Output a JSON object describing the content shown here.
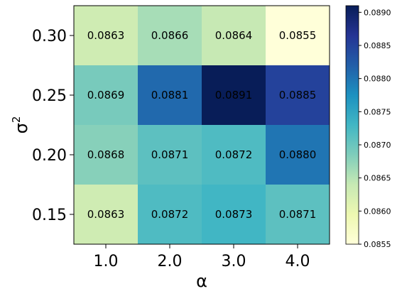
{
  "chart_data": {
    "type": "heatmap",
    "title": "",
    "xlabel": "α",
    "ylabel_base": "σ",
    "ylabel_sup": "2",
    "x_categories": [
      "1.0",
      "2.0",
      "3.0",
      "4.0"
    ],
    "y_categories": [
      "0.30",
      "0.25",
      "0.20",
      "0.15"
    ],
    "values": [
      [
        0.0863,
        0.0866,
        0.0864,
        0.0855
      ],
      [
        0.0869,
        0.0881,
        0.0891,
        0.0885
      ],
      [
        0.0868,
        0.0871,
        0.0872,
        0.088
      ],
      [
        0.0863,
        0.0872,
        0.0873,
        0.0871
      ]
    ],
    "value_labels": [
      [
        "0.0863",
        "0.0866",
        "0.0864",
        "0.0855"
      ],
      [
        "0.0869",
        "0.0881",
        "0.0891",
        "0.0885"
      ],
      [
        "0.0868",
        "0.0871",
        "0.0872",
        "0.0880"
      ],
      [
        "0.0863",
        "0.0872",
        "0.0873",
        "0.0871"
      ]
    ],
    "colormap": "YlGnBu",
    "color_range": [
      0.0855,
      0.0891
    ],
    "colorbar_ticks": [
      "0.0855",
      "0.0860",
      "0.0865",
      "0.0870",
      "0.0875",
      "0.0880",
      "0.0885",
      "0.0890"
    ],
    "colorbar_tick_values": [
      0.0855,
      0.086,
      0.0865,
      0.087,
      0.0875,
      0.088,
      0.0885,
      0.089
    ],
    "grid": false,
    "legend": "colorbar-right"
  }
}
